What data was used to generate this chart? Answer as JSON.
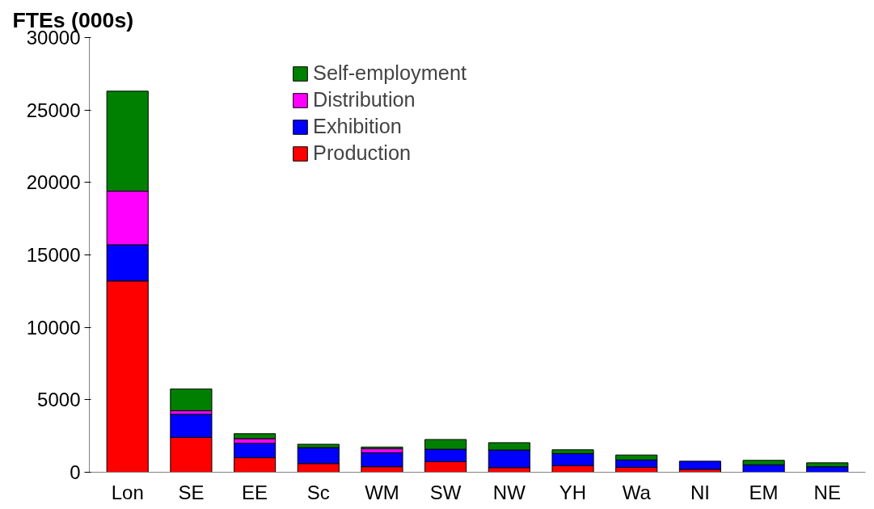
{
  "chart_data": {
    "type": "bar",
    "stacked": true,
    "ylabel": "FTEs (000s)",
    "categories": [
      "Lon",
      "SE",
      "EE",
      "Sc",
      "WM",
      "SW",
      "NW",
      "YH",
      "Wa",
      "NI",
      "EM",
      "NE"
    ],
    "series": [
      {
        "name": "Production",
        "color": "#ff0000",
        "values": [
          13200,
          2400,
          1000,
          600,
          380,
          730,
          320,
          460,
          340,
          200,
          null,
          null
        ]
      },
      {
        "name": "Exhibition",
        "color": "#0000ff",
        "values": [
          2500,
          1600,
          1000,
          1100,
          970,
          860,
          1210,
          830,
          510,
          560,
          520,
          380
        ]
      },
      {
        "name": "Distribution",
        "color": "#ff00ff",
        "values": [
          3700,
          250,
          320,
          0,
          270,
          null,
          0,
          0,
          0,
          0,
          0,
          0
        ]
      },
      {
        "name": "Self-employment",
        "color": "#008000",
        "values": [
          6900,
          1500,
          340,
          230,
          120,
          670,
          510,
          260,
          340,
          0,
          300,
          270
        ]
      }
    ],
    "ylim": [
      0,
      30000
    ],
    "yticks": [
      0,
      5000,
      10000,
      15000,
      20000,
      25000,
      30000
    ],
    "grid": false,
    "legend": "top"
  }
}
